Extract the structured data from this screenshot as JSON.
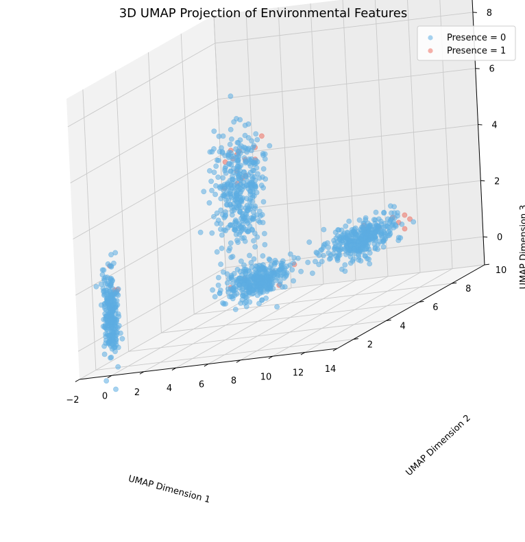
{
  "chart_data": {
    "type": "scatter",
    "title": "3D UMAP Projection of Environmental Features",
    "xlabel": "UMAP Dimension 1",
    "ylabel": "UMAP Dimension 2",
    "zlabel": "UMAP Dimension 3",
    "xlim": [
      -2,
      14
    ],
    "ylim": [
      1,
      10
    ],
    "zlim": [
      -1,
      9
    ],
    "xticks": [
      "−2",
      "0",
      "2",
      "4",
      "6",
      "8",
      "10",
      "12",
      "14"
    ],
    "yticks": [
      "2",
      "4",
      "6",
      "8",
      "10"
    ],
    "zticks": [
      "0",
      "2",
      "4",
      "6",
      "8"
    ],
    "grid": true,
    "legend_position": "top-right",
    "series": [
      {
        "name": "Presence = 0",
        "color": "#5DADE2",
        "clusters": [
          {
            "center": [
              -0.5,
              1.6,
              1.0
            ],
            "spread": [
              0.3,
              0.3,
              1.4
            ],
            "count": 260
          },
          {
            "center": [
              3.2,
              6.0,
              3.6
            ],
            "spread": [
              1.3,
              0.6,
              2.0
            ],
            "count": 380
          },
          {
            "center": [
              7.2,
              3.0,
              1.2
            ],
            "spread": [
              1.4,
              1.0,
              0.5
            ],
            "count": 340
          },
          {
            "center": [
              10.3,
              6.3,
              1.4
            ],
            "spread": [
              1.3,
              1.6,
              0.5
            ],
            "count": 360
          }
        ]
      },
      {
        "name": "Presence = 1",
        "color": "#EC7063",
        "clusters": [
          {
            "center": [
              -0.4,
              1.7,
              2.2
            ],
            "spread": [
              0.2,
              0.2,
              0.6
            ],
            "count": 4
          },
          {
            "center": [
              3.0,
              6.2,
              4.8
            ],
            "spread": [
              1.4,
              0.6,
              1.2
            ],
            "count": 14
          },
          {
            "center": [
              7.8,
              3.2,
              1.3
            ],
            "spread": [
              1.4,
              1.0,
              0.4
            ],
            "count": 5
          },
          {
            "center": [
              10.6,
              7.3,
              1.5
            ],
            "spread": [
              1.0,
              1.2,
              0.4
            ],
            "count": 10
          }
        ]
      }
    ]
  }
}
